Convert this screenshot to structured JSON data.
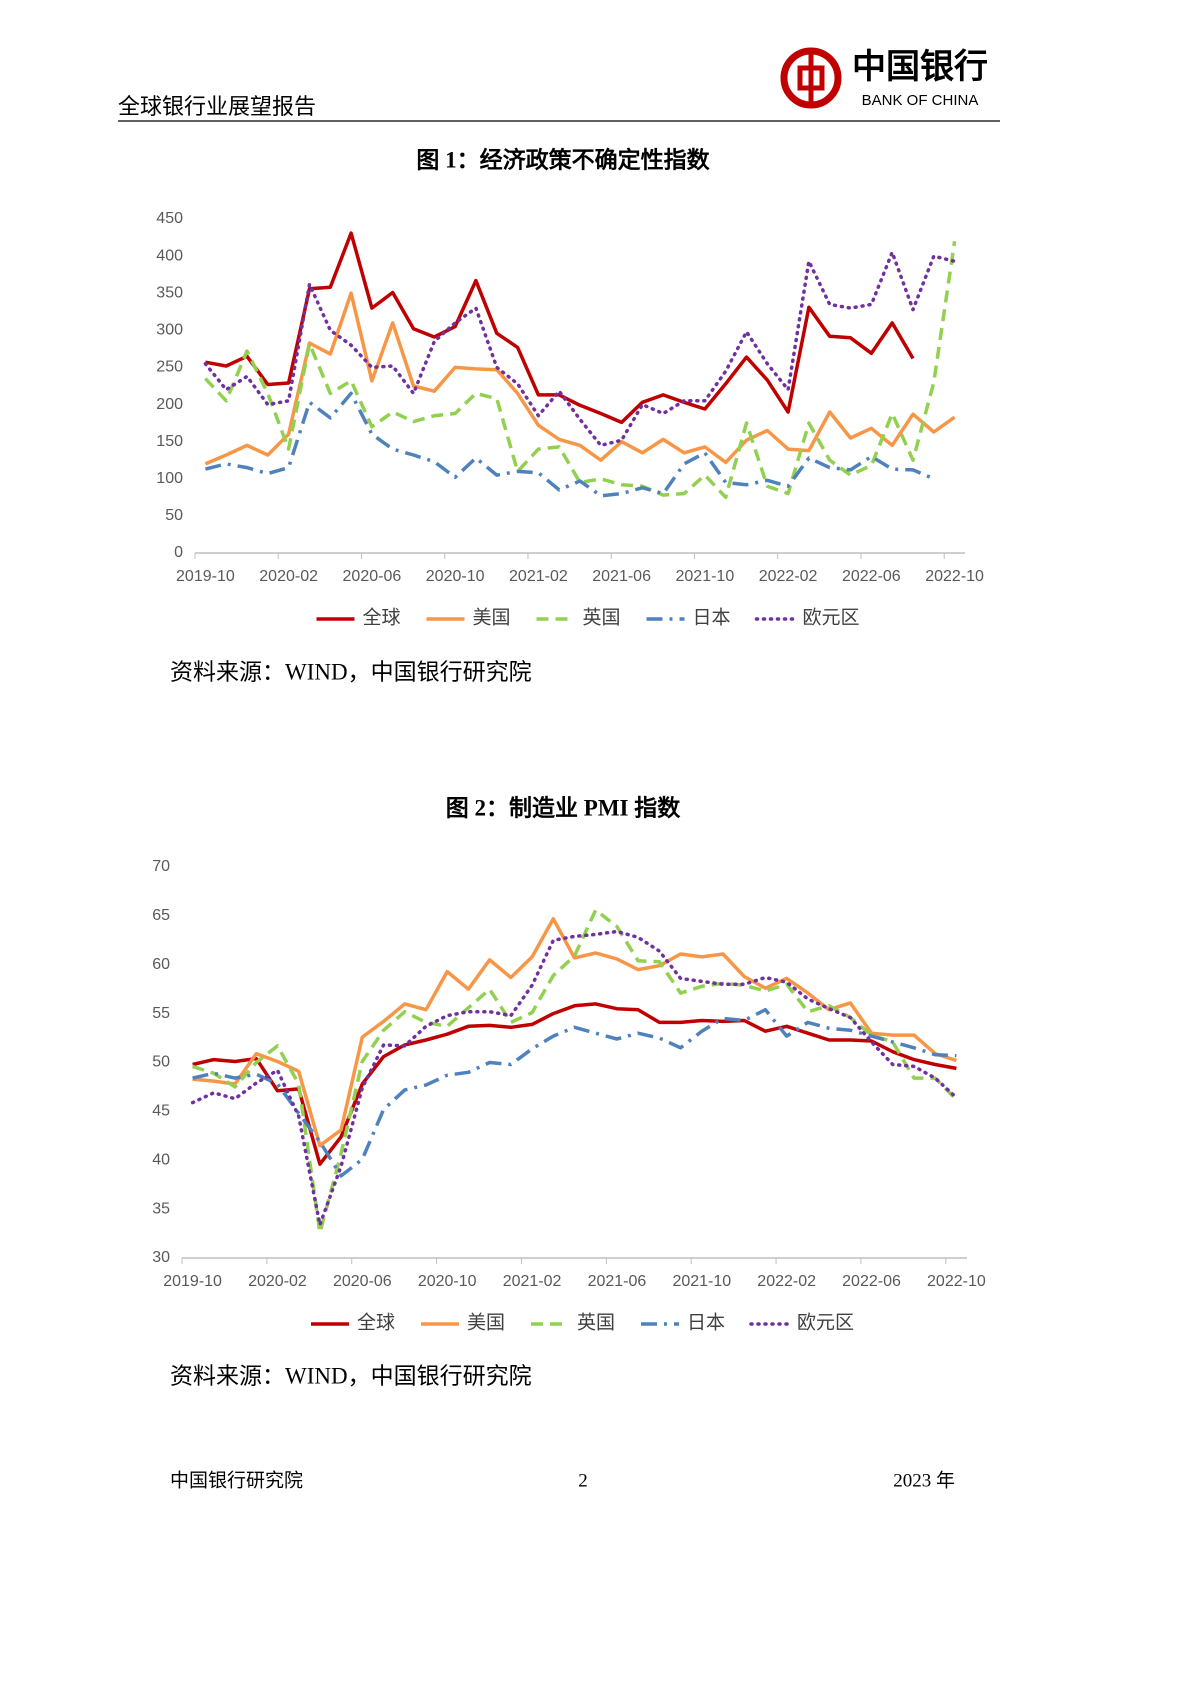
{
  "header": {
    "report_title": "全球银行业展望报告",
    "bank_name_cn": "中国银行",
    "bank_name_en": "BANK OF CHINA"
  },
  "chart_data": [
    {
      "type": "line",
      "title": "图 1：经济政策不确定性指数",
      "categories": [
        "2019-10",
        null,
        null,
        null,
        "2020-02",
        null,
        null,
        null,
        "2020-06",
        null,
        null,
        null,
        "2020-10",
        null,
        null,
        null,
        "2021-02",
        null,
        null,
        null,
        "2021-06",
        null,
        null,
        null,
        "2021-10",
        null,
        null,
        null,
        "2022-02",
        null,
        null,
        null,
        "2022-06",
        null,
        null,
        null,
        "2022-10"
      ],
      "ylim": [
        0,
        450
      ],
      "yticks": [
        0,
        50,
        100,
        150,
        200,
        250,
        300,
        350,
        400,
        450
      ],
      "grid": false,
      "legend": "bottom",
      "series": [
        {
          "name": "全球",
          "color": "#c00000",
          "dash": "solid",
          "values": [
            257,
            252,
            265,
            227,
            229,
            356,
            358,
            431,
            330,
            351,
            302,
            291,
            305,
            367,
            296,
            277,
            213,
            213,
            199,
            188,
            176,
            203,
            213,
            203,
            194,
            228,
            264,
            233,
            190,
            331,
            292,
            290,
            269,
            310,
            262,
            null,
            null
          ]
        },
        {
          "name": "美国",
          "color": "#f79646",
          "dash": "solid",
          "values": [
            120,
            132,
            145,
            132,
            160,
            283,
            268,
            350,
            232,
            310,
            225,
            218,
            250,
            248,
            247,
            215,
            172,
            153,
            145,
            125,
            150,
            135,
            153,
            135,
            143,
            122,
            152,
            165,
            140,
            138,
            190,
            155,
            168,
            145,
            187,
            163,
            183
          ]
        },
        {
          "name": "英国",
          "color": "#92d050",
          "dash": "dashed",
          "values": [
            235,
            205,
            272,
            215,
            140,
            282,
            215,
            232,
            170,
            190,
            177,
            185,
            188,
            215,
            208,
            110,
            140,
            143,
            95,
            100,
            92,
            90,
            78,
            80,
            105,
            75,
            175,
            90,
            80,
            175,
            125,
            105,
            118,
            188,
            125,
            230,
            420
          ]
        },
        {
          "name": "日本",
          "color": "#4f81bd",
          "dash": "dash-dot",
          "values": [
            113,
            120,
            115,
            107,
            115,
            203,
            182,
            215,
            160,
            140,
            132,
            123,
            102,
            128,
            105,
            110,
            108,
            85,
            97,
            77,
            80,
            88,
            80,
            120,
            135,
            95,
            92,
            98,
            90,
            128,
            115,
            112,
            130,
            113,
            112,
            100,
            null
          ]
        },
        {
          "name": "欧元区",
          "color": "#7030a0",
          "dash": "dotted",
          "values": [
            255,
            220,
            238,
            200,
            205,
            362,
            300,
            280,
            250,
            252,
            215,
            285,
            310,
            330,
            250,
            228,
            185,
            218,
            180,
            145,
            152,
            200,
            188,
            205,
            205,
            245,
            298,
            255,
            220,
            393,
            335,
            330,
            335,
            405,
            328,
            400,
            393
          ]
        }
      ],
      "source": "资料来源：WIND，中国银行研究院"
    },
    {
      "type": "line",
      "title": "图 2：制造业 PMI 指数",
      "categories": [
        "2019-10",
        null,
        null,
        null,
        "2020-02",
        null,
        null,
        null,
        "2020-06",
        null,
        null,
        null,
        "2020-10",
        null,
        null,
        null,
        "2021-02",
        null,
        null,
        null,
        "2021-06",
        null,
        null,
        null,
        "2021-10",
        null,
        null,
        null,
        "2022-02",
        null,
        null,
        null,
        "2022-06",
        null,
        null,
        null,
        "2022-10"
      ],
      "ylim": [
        30,
        70
      ],
      "yticks": [
        30,
        35,
        40,
        45,
        50,
        55,
        60,
        65,
        70
      ],
      "grid": false,
      "legend": "bottom",
      "series": [
        {
          "name": "全球",
          "color": "#c00000",
          "dash": "solid",
          "values": [
            49.8,
            50.3,
            50.1,
            50.4,
            47.1,
            47.3,
            39.6,
            42.4,
            47.8,
            50.6,
            51.8,
            52.3,
            52.9,
            53.7,
            53.8,
            53.6,
            53.9,
            55.0,
            55.8,
            56.0,
            55.5,
            55.4,
            54.1,
            54.1,
            54.3,
            54.2,
            54.3,
            53.2,
            53.7,
            53.0,
            52.3,
            52.3,
            52.2,
            51.1,
            50.3,
            49.8,
            49.4
          ]
        },
        {
          "name": "美国",
          "color": "#f79646",
          "dash": "solid",
          "values": [
            48.3,
            48.1,
            47.8,
            50.9,
            50.1,
            49.1,
            41.5,
            43.1,
            52.6,
            54.2,
            56.0,
            55.4,
            59.3,
            57.5,
            60.5,
            58.7,
            60.8,
            64.7,
            60.7,
            61.2,
            60.6,
            59.5,
            59.9,
            61.1,
            60.8,
            61.1,
            58.8,
            57.6,
            58.6,
            57.1,
            55.4,
            56.1,
            53.0,
            52.8,
            52.8,
            50.9,
            50.2
          ]
        },
        {
          "name": "英国",
          "color": "#92d050",
          "dash": "dashed",
          "values": [
            49.6,
            48.9,
            47.5,
            50.0,
            51.7,
            47.8,
            32.6,
            40.7,
            50.1,
            53.3,
            55.2,
            54.1,
            53.7,
            55.6,
            57.5,
            54.1,
            55.1,
            58.9,
            60.9,
            65.6,
            63.9,
            60.4,
            60.3,
            57.1,
            57.8,
            58.1,
            57.9,
            57.3,
            58.0,
            55.2,
            55.8,
            54.6,
            52.8,
            52.1,
            48.4,
            48.4,
            46.2
          ]
        },
        {
          "name": "日本",
          "color": "#4f81bd",
          "dash": "dash-dot",
          "values": [
            48.4,
            48.9,
            48.4,
            48.8,
            47.8,
            44.8,
            41.9,
            38.4,
            40.1,
            45.2,
            47.2,
            47.7,
            48.7,
            49.0,
            50.0,
            49.8,
            51.4,
            52.7,
            53.6,
            53.0,
            52.4,
            53.0,
            52.5,
            51.5,
            53.2,
            54.5,
            54.3,
            55.4,
            52.7,
            54.1,
            53.5,
            53.3,
            52.7,
            52.1,
            51.5,
            50.8,
            50.7
          ]
        },
        {
          "name": "欧元区",
          "color": "#7030a0",
          "dash": "dotted",
          "values": [
            45.9,
            46.9,
            46.3,
            47.9,
            49.2,
            44.5,
            33.4,
            39.4,
            47.4,
            51.8,
            51.7,
            53.7,
            54.8,
            55.2,
            55.2,
            54.8,
            57.9,
            62.5,
            62.9,
            63.1,
            63.4,
            62.8,
            61.4,
            58.6,
            58.3,
            58.0,
            58.0,
            58.7,
            58.2,
            56.5,
            55.5,
            54.6,
            52.1,
            49.8,
            49.6,
            48.4,
            46.4
          ]
        }
      ],
      "source": "资料来源：WIND，中国银行研究院"
    }
  ],
  "footer": {
    "left": "中国银行研究院",
    "page": "2",
    "right": "2023 年"
  }
}
